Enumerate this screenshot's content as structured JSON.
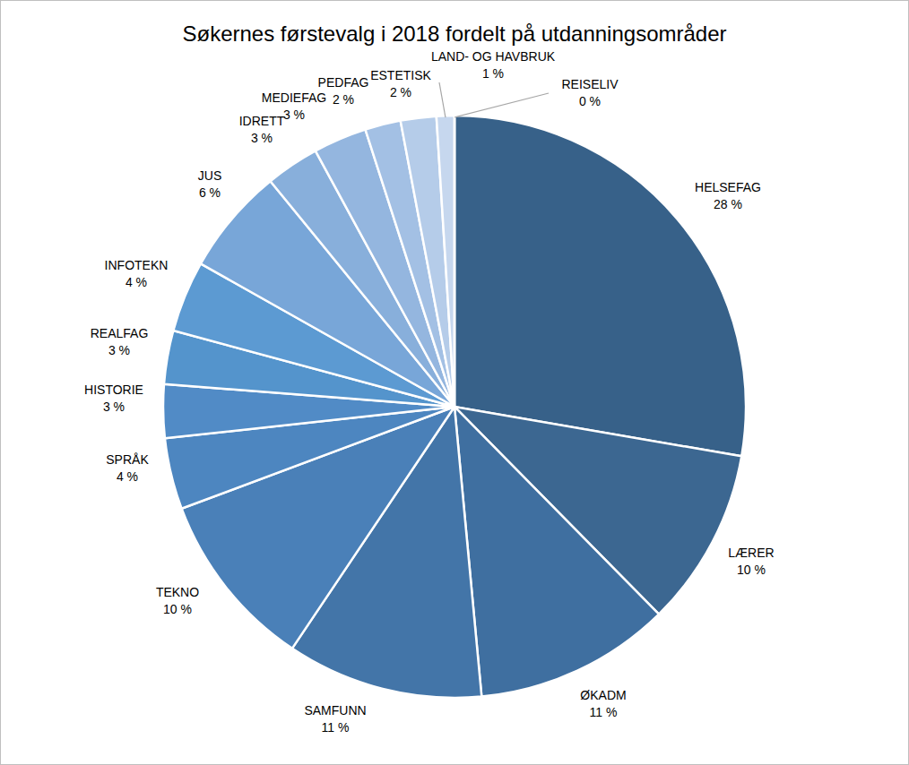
{
  "chart_data": {
    "type": "pie",
    "title": "Søkernes førstevalg i 2018 fordelt på utdanningsområder",
    "categories": [
      "HELSEFAG",
      "LÆRER",
      "ØKADM",
      "SAMFUNN",
      "TEKNO",
      "SPRÅK",
      "HISTORIE",
      "REALFAG",
      "INFOTEKN",
      "JUS",
      "IDRETT",
      "MEDIEFAG",
      "PEDFAG",
      "ESTETISK",
      "LAND- OG HAVBRUK",
      "REISELIV"
    ],
    "values": [
      28,
      10,
      11,
      11,
      10,
      4,
      3,
      3,
      4,
      6,
      3,
      3,
      2,
      2,
      1,
      0
    ],
    "value_labels": [
      "28 %",
      "10 %",
      "11 %",
      "11 %",
      "10 %",
      "4 %",
      "3 %",
      "3 %",
      "4 %",
      "6 %",
      "3 %",
      "3 %",
      "2 %",
      "2 %",
      "1 %",
      "0 %"
    ],
    "colors": [
      "#376189",
      "#3c6791",
      "#3f6fa0",
      "#4375a8",
      "#4a80b8",
      "#4d86c0",
      "#518bc6",
      "#5494cc",
      "#5c9ad2",
      "#78a6d8",
      "#88afdb",
      "#94b6df",
      "#a3c0e4",
      "#b5cce9",
      "#c6d7ee",
      "#d5e2f3"
    ],
    "data_labels": true
  }
}
